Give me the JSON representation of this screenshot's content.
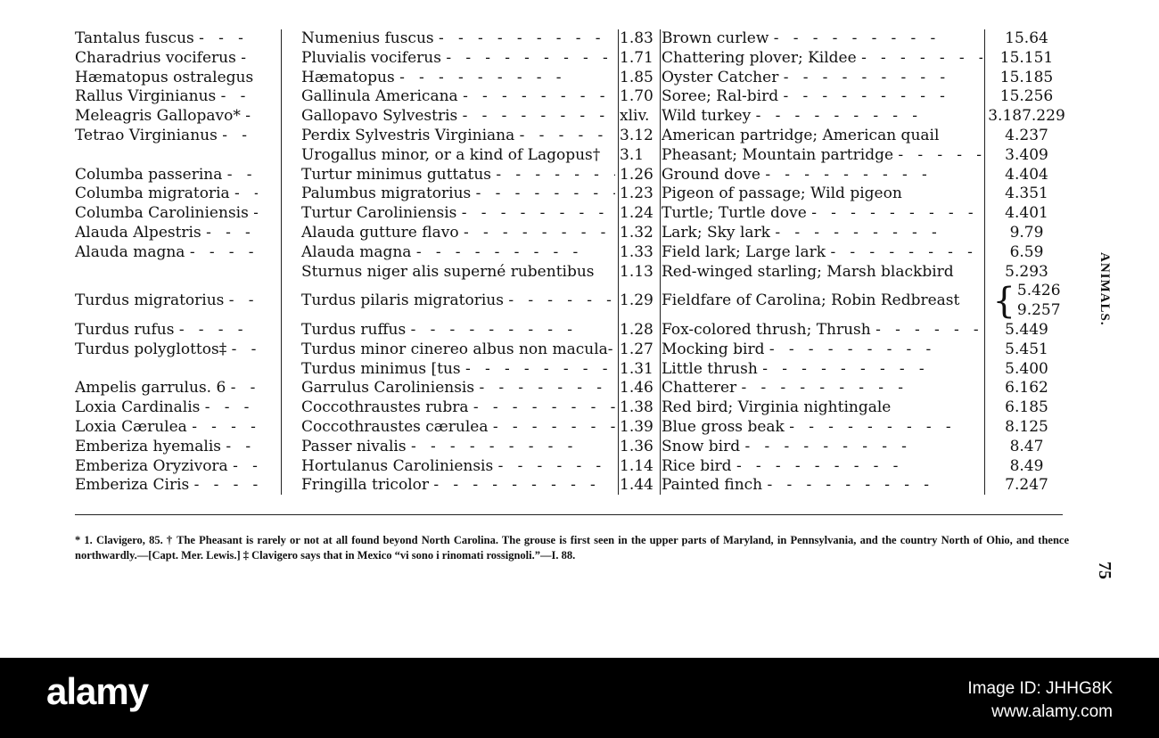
{
  "table": {
    "rows": [
      {
        "linnaeus": "Tantalus fuscus",
        "buffon": "Numenius fuscus",
        "ref": "1.83",
        "popular": "Brown curlew",
        "page": "15.64"
      },
      {
        "linnaeus": "Charadrius vociferus",
        "buffon": "Pluvialis vociferus",
        "ref": "1.71",
        "popular": "Chattering plover; Kildee",
        "page": "15.151"
      },
      {
        "linnaeus": "Hæmatopus ostralegus",
        "buffon": "Hæmatopus",
        "ref": "1.85",
        "popular": "Oyster Catcher",
        "page": "15.185"
      },
      {
        "linnaeus": "Rallus Virginianus",
        "buffon": "Gallinula Americana",
        "ref": "1.70",
        "popular": "Soree; Ral-bird",
        "page": "15.256"
      },
      {
        "linnaeus": "Meleagris Gallopavo*",
        "buffon": "Gallopavo Sylvestris",
        "ref": "xliv.",
        "popular": "Wild turkey",
        "page": "3.187.229"
      },
      {
        "linnaeus": "Tetrao Virginianus",
        "buffon": "Perdix Sylvestris Virginiana",
        "ref": "3.12",
        "popular": "American partridge; American quail",
        "page": "4.237"
      },
      {
        "linnaeus": "",
        "buffon": "Urogallus minor, or a kind of Lagopus†",
        "ref": "3.1",
        "popular": "Pheasant; Mountain partridge",
        "page": "3.409"
      },
      {
        "linnaeus": "Columba passerina",
        "buffon": "Turtur minimus guttatus",
        "ref": "1.26",
        "popular": "Ground dove",
        "page": "4.404"
      },
      {
        "linnaeus": "Columba migratoria",
        "buffon": "Palumbus migratorius",
        "ref": "1.23",
        "popular": "Pigeon of passage; Wild pigeon",
        "page": "4.351"
      },
      {
        "linnaeus": "Columba Caroliniensis",
        "buffon": "Turtur Caroliniensis",
        "ref": "1.24",
        "popular": "Turtle; Turtle dove",
        "page": "4.401"
      },
      {
        "linnaeus": "Alauda Alpestris",
        "buffon": "Alauda gutture flavo",
        "ref": "1.32",
        "popular": "Lark; Sky lark",
        "page": "9.79"
      },
      {
        "linnaeus": "Alauda magna",
        "buffon": "Alauda magna",
        "ref": "1.33",
        "popular": "Field lark; Large lark",
        "page": "6.59"
      },
      {
        "linnaeus": "",
        "buffon": "Sturnus niger alis superné rubentibus",
        "ref": "1.13",
        "popular": "Red-winged starling; Marsh blackbird",
        "page": "5.293"
      },
      {
        "linnaeus": "Turdus migratorius",
        "buffon": "Turdus pilaris migratorius",
        "ref": "1.29",
        "popular": "Fieldfare of Carolina; Robin Redbreast",
        "pages": [
          "5.426",
          "9.257"
        ]
      },
      {
        "linnaeus": "Turdus rufus",
        "buffon": "Turdus ruffus",
        "ref": "1.28",
        "popular": "Fox-colored thrush; Thrush",
        "page": "5.449"
      },
      {
        "linnaeus": "Turdus polyglottos‡",
        "buffon": "Turdus minor cinereo albus non macula-",
        "ref": "1.27",
        "popular": "Mocking bird",
        "page": "5.451"
      },
      {
        "linnaeus": "",
        "buffon": "Turdus minimus          [tus",
        "ref": "1.31",
        "popular": "Little thrush",
        "page": "5.400"
      },
      {
        "linnaeus": "Ampelis garrulus. 6",
        "buffon": "Garrulus Caroliniensis",
        "ref": "1.46",
        "popular": "Chatterer",
        "page": "6.162"
      },
      {
        "linnaeus": "Loxia Cardinalis",
        "buffon": "Coccothraustes rubra",
        "ref": "1.38",
        "popular": "Red bird; Virginia nightingale",
        "page": "6.185"
      },
      {
        "linnaeus": "Loxia Cærulea",
        "buffon": "Coccothraustes cærulea",
        "ref": "1.39",
        "popular": "Blue gross beak",
        "page": "8.125"
      },
      {
        "linnaeus": "Emberiza hyemalis",
        "buffon": "Passer nivalis",
        "ref": "1.36",
        "popular": "Snow bird",
        "page": "8.47"
      },
      {
        "linnaeus": "Emberiza Oryzivora",
        "buffon": "Hortulanus Caroliniensis",
        "ref": "1.14",
        "popular": "Rice bird",
        "page": "8.49"
      },
      {
        "linnaeus": "Emberiza Ciris",
        "buffon": "Fringilla tricolor",
        "ref": "1.44",
        "popular": "Painted finch",
        "page": "7.247"
      }
    ]
  },
  "footnote": "* 1. Clavigero, 85.  † The Pheasant is rarely or not at all found beyond North Carolina.  The grouse is first seen in the upper parts of Maryland, in Pennsylvania, and the country North of Ohio, and thence northwardly.—[Capt. Mer. Lewis.]  ‡ Clavigero says that in Mexico “vi sono i rinomati rossignoli.”—I. 88.",
  "running_head": "ANIMALS.",
  "page_number": "75",
  "watermark": {
    "logo": "alamy",
    "image_id": "Image ID: JHHG8K",
    "site": "www.alamy.com"
  }
}
